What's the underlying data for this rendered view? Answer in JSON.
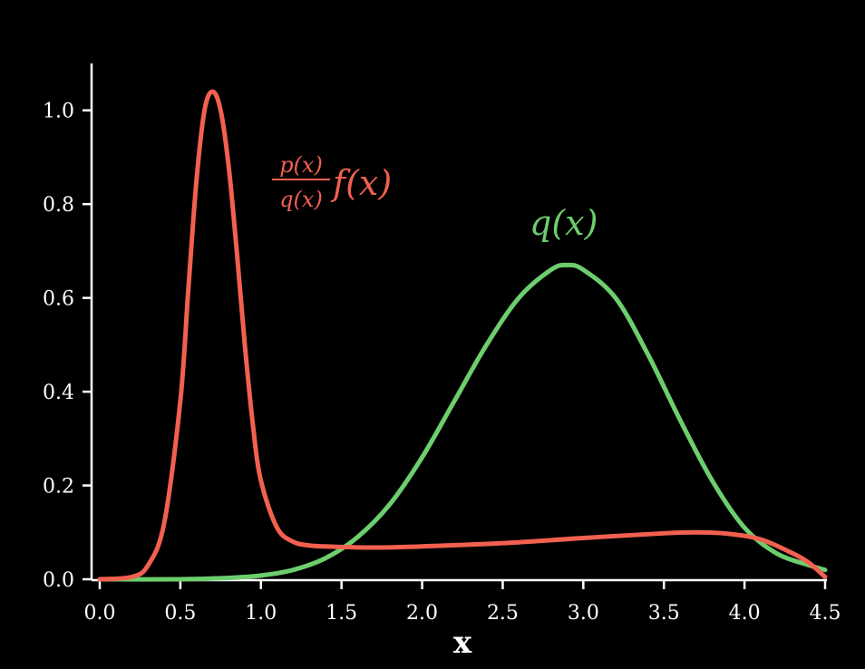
{
  "chart_data": {
    "type": "line",
    "title": "",
    "xlabel": "x",
    "ylabel": "",
    "xlim": [
      0.0,
      4.5
    ],
    "ylim": [
      0.0,
      1.1
    ],
    "xticks": [
      "0.0",
      "0.5",
      "1.0",
      "1.5",
      "2.0",
      "2.5",
      "3.0",
      "3.5",
      "4.0",
      "4.5"
    ],
    "yticks": [
      "0.0",
      "0.2",
      "0.4",
      "0.6",
      "0.8",
      "1.0"
    ],
    "grid": false,
    "legend": "none",
    "series": [
      {
        "name": "p(x)/q(x) f(x)",
        "color": "#f2604f",
        "x": [
          0.0,
          0.2,
          0.3,
          0.4,
          0.5,
          0.55,
          0.6,
          0.65,
          0.7,
          0.75,
          0.8,
          0.85,
          0.9,
          0.95,
          1.0,
          1.1,
          1.2,
          1.3,
          1.4,
          1.6,
          1.8,
          2.0,
          2.5,
          3.0,
          3.5,
          3.7,
          3.9,
          4.1,
          4.3,
          4.4,
          4.5
        ],
        "y": [
          0.0,
          0.005,
          0.03,
          0.12,
          0.38,
          0.62,
          0.85,
          1.0,
          1.04,
          1.0,
          0.88,
          0.7,
          0.5,
          0.33,
          0.21,
          0.11,
          0.08,
          0.072,
          0.07,
          0.068,
          0.068,
          0.07,
          0.077,
          0.088,
          0.098,
          0.1,
          0.097,
          0.085,
          0.055,
          0.035,
          0.005
        ]
      },
      {
        "name": "q(x)",
        "color": "#6dce6e",
        "x": [
          0.0,
          0.5,
          0.8,
          1.0,
          1.2,
          1.4,
          1.6,
          1.8,
          2.0,
          2.2,
          2.4,
          2.6,
          2.8,
          2.9,
          3.0,
          3.2,
          3.4,
          3.6,
          3.8,
          4.0,
          4.2,
          4.4,
          4.5
        ],
        "y": [
          0.0,
          0.0,
          0.003,
          0.008,
          0.02,
          0.045,
          0.09,
          0.16,
          0.26,
          0.38,
          0.5,
          0.6,
          0.66,
          0.67,
          0.66,
          0.6,
          0.48,
          0.34,
          0.21,
          0.11,
          0.055,
          0.03,
          0.02
        ]
      }
    ],
    "annotations": {
      "red_label": {
        "frac_num": "p(x)",
        "frac_den": "q(x)",
        "f": "f(x)"
      },
      "green_label": "q(x)"
    }
  }
}
